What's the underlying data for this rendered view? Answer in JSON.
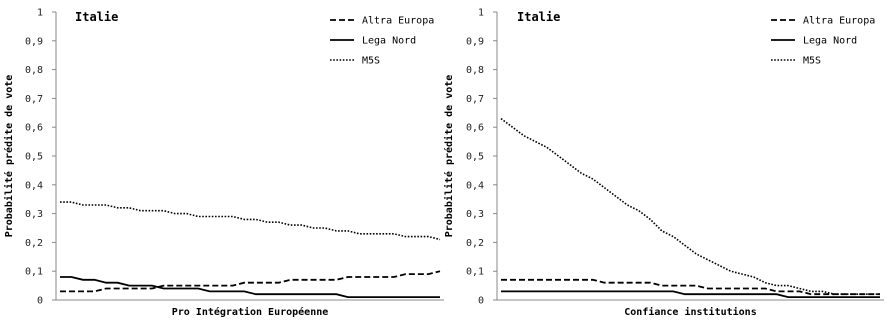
{
  "chart_data": [
    {
      "type": "line",
      "title": "Italie",
      "xlabel": "Pro Intégration Européenne",
      "ylabel": "Probabilité prédite de vote",
      "ylim": [
        0,
        1
      ],
      "yticks": [
        "0",
        "0,1",
        "0,2",
        "0,3",
        "0,4",
        "0,5",
        "0,6",
        "0,7",
        "0,8",
        "0,9",
        "1"
      ],
      "x": [
        1,
        2,
        3,
        4,
        5,
        6,
        7,
        8,
        9,
        10,
        11,
        12,
        13,
        14,
        15,
        16,
        17,
        18,
        19,
        20,
        21,
        22,
        23,
        24,
        25,
        26,
        27,
        28,
        29,
        30,
        31,
        32,
        33,
        34
      ],
      "legend_position": "top-right",
      "grid": false,
      "series": [
        {
          "name": "Altra Europa",
          "style": "dashed",
          "values": [
            0.03,
            0.03,
            0.03,
            0.03,
            0.04,
            0.04,
            0.04,
            0.04,
            0.04,
            0.05,
            0.05,
            0.05,
            0.05,
            0.05,
            0.05,
            0.05,
            0.06,
            0.06,
            0.06,
            0.06,
            0.07,
            0.07,
            0.07,
            0.07,
            0.07,
            0.08,
            0.08,
            0.08,
            0.08,
            0.08,
            0.09,
            0.09,
            0.09,
            0.1
          ]
        },
        {
          "name": "Lega Nord",
          "style": "solid",
          "values": [
            0.08,
            0.08,
            0.07,
            0.07,
            0.06,
            0.06,
            0.05,
            0.05,
            0.05,
            0.04,
            0.04,
            0.04,
            0.04,
            0.03,
            0.03,
            0.03,
            0.03,
            0.02,
            0.02,
            0.02,
            0.02,
            0.02,
            0.02,
            0.02,
            0.02,
            0.01,
            0.01,
            0.01,
            0.01,
            0.01,
            0.01,
            0.01,
            0.01,
            0.01
          ]
        },
        {
          "name": "M5S",
          "style": "dotted",
          "values": [
            0.34,
            0.34,
            0.33,
            0.33,
            0.33,
            0.32,
            0.32,
            0.31,
            0.31,
            0.31,
            0.3,
            0.3,
            0.29,
            0.29,
            0.29,
            0.29,
            0.28,
            0.28,
            0.27,
            0.27,
            0.26,
            0.26,
            0.25,
            0.25,
            0.24,
            0.24,
            0.23,
            0.23,
            0.23,
            0.23,
            0.22,
            0.22,
            0.22,
            0.21
          ]
        }
      ]
    },
    {
      "type": "line",
      "title": "Italie",
      "xlabel": "Confiance institutions",
      "ylabel": "Probabilité prédite de vote",
      "ylim": [
        0,
        1
      ],
      "yticks": [
        "0",
        "0,1",
        "0,2",
        "0,3",
        "0,4",
        "0,5",
        "0,6",
        "0,7",
        "0,8",
        "0,9",
        "1"
      ],
      "x": [
        1,
        2,
        3,
        4,
        5,
        6,
        7,
        8,
        9,
        10,
        11,
        12,
        13,
        14,
        15,
        16,
        17,
        18,
        19,
        20,
        21,
        22,
        23,
        24,
        25,
        26,
        27,
        28,
        29,
        30,
        31,
        32,
        33,
        34
      ],
      "legend_position": "top-right",
      "grid": false,
      "series": [
        {
          "name": "Altra Europa",
          "style": "dashed",
          "values": [
            0.07,
            0.07,
            0.07,
            0.07,
            0.07,
            0.07,
            0.07,
            0.07,
            0.07,
            0.06,
            0.06,
            0.06,
            0.06,
            0.06,
            0.05,
            0.05,
            0.05,
            0.05,
            0.04,
            0.04,
            0.04,
            0.04,
            0.04,
            0.04,
            0.03,
            0.03,
            0.03,
            0.02,
            0.02,
            0.02,
            0.02,
            0.02,
            0.02,
            0.02
          ]
        },
        {
          "name": "Lega Nord",
          "style": "solid",
          "values": [
            0.03,
            0.03,
            0.03,
            0.03,
            0.03,
            0.03,
            0.03,
            0.03,
            0.03,
            0.03,
            0.03,
            0.03,
            0.03,
            0.03,
            0.03,
            0.03,
            0.02,
            0.02,
            0.02,
            0.02,
            0.02,
            0.02,
            0.02,
            0.02,
            0.02,
            0.01,
            0.01,
            0.01,
            0.01,
            0.01,
            0.01,
            0.01,
            0.01,
            0.01
          ]
        },
        {
          "name": "M5S",
          "style": "dotted",
          "values": [
            0.63,
            0.6,
            0.57,
            0.55,
            0.53,
            0.5,
            0.47,
            0.44,
            0.42,
            0.39,
            0.36,
            0.33,
            0.31,
            0.28,
            0.24,
            0.22,
            0.19,
            0.16,
            0.14,
            0.12,
            0.1,
            0.09,
            0.08,
            0.06,
            0.05,
            0.05,
            0.04,
            0.03,
            0.03,
            0.02,
            0.02,
            0.02,
            0.02,
            0.02
          ]
        }
      ]
    }
  ]
}
